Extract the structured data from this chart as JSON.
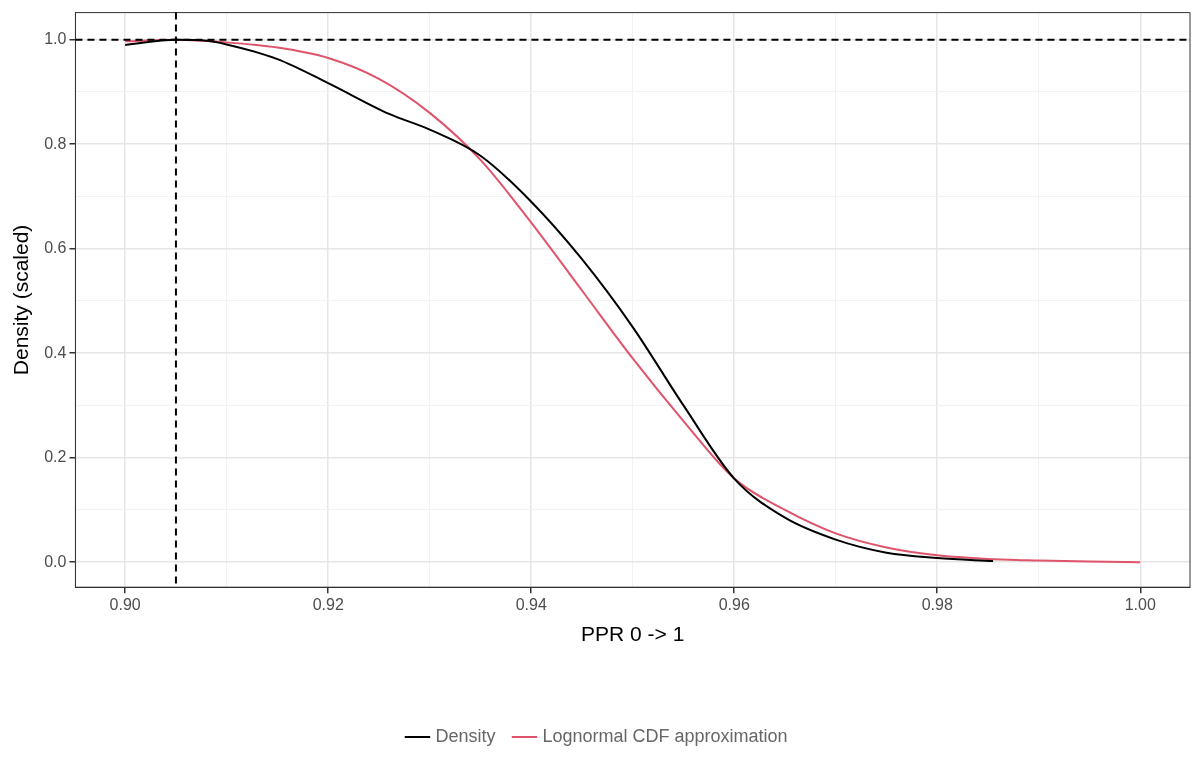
{
  "chart_data": {
    "type": "line",
    "xlabel": "PPR 0 -> 1",
    "ylabel": "Density (scaled)",
    "xlim": [
      0.8951,
      1.0049
    ],
    "ylim": [
      -0.048,
      1.052
    ],
    "xticks": [
      {
        "value": 0.9,
        "label": "0.90"
      },
      {
        "value": 0.91,
        "label": null
      },
      0.92,
      {
        "value": 0.93,
        "label": null
      },
      0.94,
      {
        "value": 0.95,
        "label": null
      },
      0.96,
      {
        "value": 0.97,
        "label": null
      },
      0.98,
      {
        "value": 0.99,
        "label": null
      },
      {
        "value": 1.0,
        "label": "1.00"
      }
    ],
    "yticks": [
      {
        "value": 0.0,
        "label": "0.0"
      },
      {
        "value": 0.1,
        "label": null
      },
      {
        "value": 0.2,
        "label": "0.2"
      },
      {
        "value": 0.3,
        "label": null
      },
      {
        "value": 0.4,
        "label": "0.4"
      },
      {
        "value": 0.5,
        "label": null
      },
      {
        "value": 0.6,
        "label": "0.6"
      },
      {
        "value": 0.7,
        "label": null
      },
      {
        "value": 0.8,
        "label": "0.8"
      },
      {
        "value": 0.9,
        "label": null
      },
      {
        "value": 1.0,
        "label": "1.0"
      }
    ],
    "grid": true,
    "legend": "bottom",
    "marker": "none",
    "line_style": "solid",
    "ref_lines": [
      {
        "axis": "x",
        "value": 0.905,
        "color": "#000000",
        "line_style": "dashed"
      },
      {
        "axis": "y",
        "value": 1.0,
        "color": "#000000",
        "line_style": "dashed"
      }
    ],
    "series": [
      {
        "name": "Density",
        "color": "#000000",
        "x": [
          0.9,
          0.905,
          0.908,
          0.91,
          0.915,
          0.92,
          0.926,
          0.93,
          0.935,
          0.94,
          0.945,
          0.95,
          0.955,
          0.96,
          0.965,
          0.97,
          0.975,
          0.98,
          0.9855
        ],
        "values": [
          0.99,
          1.0,
          0.998,
          0.991,
          0.963,
          0.917,
          0.858,
          0.828,
          0.778,
          0.69,
          0.58,
          0.45,
          0.3,
          0.16,
          0.085,
          0.043,
          0.018,
          0.008,
          0.002
        ]
      },
      {
        "name": "Lognormal CDF approximation",
        "color": "#df536b",
        "x": [
          0.9,
          0.905,
          0.91,
          0.915,
          0.92,
          0.925,
          0.93,
          0.935,
          0.94,
          0.945,
          0.95,
          0.955,
          0.96,
          0.965,
          0.97,
          0.975,
          0.98,
          0.985,
          0.99,
          0.995,
          1.0
        ],
        "values": [
          0.997,
          1.0,
          0.995,
          0.985,
          0.965,
          0.925,
          0.86,
          0.77,
          0.65,
          0.52,
          0.39,
          0.27,
          0.16,
          0.1,
          0.055,
          0.028,
          0.013,
          0.006,
          0.003,
          0.001,
          0.0
        ]
      }
    ]
  }
}
